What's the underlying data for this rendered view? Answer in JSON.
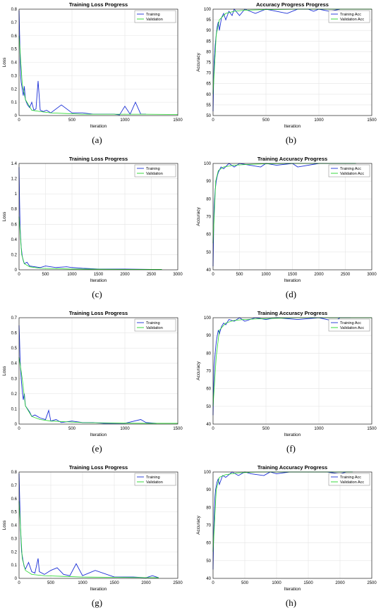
{
  "colors": {
    "training": "#1a2fd6",
    "validation": "#22d62a",
    "grid": "#e4e4e4",
    "axis": "#000000"
  },
  "chart_data": [
    {
      "type": "line",
      "caption": "(a)",
      "title": "Training Loss Progress",
      "xlabel": "Iteration",
      "ylabel": "Loss",
      "xlim": [
        0,
        1500
      ],
      "ylim": [
        0,
        0.8
      ],
      "xticks": [
        "0",
        "500",
        "1000",
        "1500"
      ],
      "yticks": [
        "0",
        "0.1",
        "0.2",
        "0.3",
        "0.4",
        "0.5",
        "0.6",
        "0.7",
        "0.8"
      ],
      "grid": true,
      "legend": "top-right",
      "series": [
        {
          "name": "Training",
          "x": [
            0,
            5,
            10,
            15,
            20,
            30,
            40,
            50,
            60,
            80,
            100,
            120,
            140,
            160,
            180,
            200,
            230,
            260,
            300,
            400,
            500,
            600,
            700,
            800,
            900,
            950,
            1000,
            1050,
            1100,
            1150,
            1200
          ],
          "y": [
            0.79,
            0.62,
            0.45,
            0.3,
            0.25,
            0.2,
            0.15,
            0.22,
            0.12,
            0.08,
            0.06,
            0.1,
            0.04,
            0.05,
            0.26,
            0.04,
            0.03,
            0.04,
            0.02,
            0.08,
            0.02,
            0.02,
            0.01,
            0.01,
            0.01,
            0.005,
            0.07,
            0.01,
            0.1,
            0.01,
            0.01
          ]
        },
        {
          "name": "Validation",
          "x": [
            0,
            30,
            60,
            120,
            200,
            300,
            450,
            600,
            800,
            1000,
            1200,
            1500
          ],
          "y": [
            0.6,
            0.24,
            0.12,
            0.04,
            0.03,
            0.02,
            0.015,
            0.01,
            0.01,
            0.01,
            0.01,
            0.008
          ]
        }
      ]
    },
    {
      "type": "line",
      "caption": "(b)",
      "title": "Accuracy Progress Progress",
      "xlabel": "Iteration",
      "ylabel": "Accuracy",
      "xlim": [
        0,
        1500
      ],
      "ylim": [
        50,
        100
      ],
      "xticks": [
        "0",
        "500",
        "1000",
        "1500"
      ],
      "yticks": [
        "50",
        "55",
        "60",
        "65",
        "70",
        "75",
        "80",
        "85",
        "90",
        "95",
        "100"
      ],
      "grid": true,
      "legend": "top-right",
      "series": [
        {
          "name": "Training Acc",
          "x": [
            0,
            5,
            10,
            20,
            30,
            40,
            50,
            60,
            80,
            100,
            120,
            150,
            180,
            200,
            250,
            300,
            350,
            400,
            500,
            600,
            700,
            800,
            900,
            950,
            1000,
            1100,
            1200
          ],
          "y": [
            52,
            65,
            75,
            83,
            88,
            92,
            94,
            90,
            96,
            98,
            95,
            99,
            97,
            100,
            97,
            100,
            99,
            98,
            100,
            99,
            98,
            100,
            100,
            99,
            100,
            99,
            100
          ]
        },
        {
          "name": "Validation Acc",
          "x": [
            0,
            30,
            60,
            120,
            200,
            300,
            500,
            800,
            1000,
            1200,
            1500
          ],
          "y": [
            60,
            88,
            95,
            98,
            99,
            99.5,
            99.8,
            100,
            100,
            100,
            100
          ]
        }
      ]
    },
    {
      "type": "line",
      "caption": "(c)",
      "title": "Training Loss Progress",
      "xlabel": "Iteration",
      "ylabel": "Loss",
      "xlim": [
        0,
        3000
      ],
      "ylim": [
        0,
        1.4
      ],
      "xticks": [
        "0",
        "500",
        "1000",
        "1500",
        "2000",
        "2500",
        "3000"
      ],
      "yticks": [
        "0",
        "0.2",
        "0.4",
        "0.6",
        "0.8",
        "1",
        "1.2",
        "1.4"
      ],
      "grid": true,
      "legend": "top-right",
      "series": [
        {
          "name": "Training",
          "x": [
            0,
            10,
            20,
            40,
            60,
            80,
            100,
            150,
            200,
            300,
            400,
            500,
            700,
            900,
            1000,
            1200,
            1500,
            2000,
            2500,
            2700
          ],
          "y": [
            1.35,
            0.9,
            0.55,
            0.3,
            0.18,
            0.12,
            0.08,
            0.1,
            0.05,
            0.04,
            0.03,
            0.05,
            0.03,
            0.04,
            0.03,
            0.02,
            0.01,
            0.01,
            0.005,
            0.005
          ]
        },
        {
          "name": "Validation",
          "x": [
            0,
            50,
            100,
            200,
            400,
            700,
            1000,
            1500,
            2000,
            2700
          ],
          "y": [
            0.7,
            0.2,
            0.08,
            0.04,
            0.02,
            0.015,
            0.01,
            0.008,
            0.006,
            0.005
          ]
        }
      ]
    },
    {
      "type": "line",
      "caption": "(d)",
      "title": "Training Accuracy Progress",
      "xlabel": "Iteration",
      "ylabel": "Accuracy",
      "xlim": [
        0,
        3000
      ],
      "ylim": [
        40,
        100
      ],
      "xticks": [
        "0",
        "500",
        "1000",
        "1500",
        "2000",
        "2500",
        "3000"
      ],
      "yticks": [
        "40",
        "50",
        "60",
        "70",
        "80",
        "90",
        "100"
      ],
      "grid": true,
      "legend": "top-right",
      "series": [
        {
          "name": "Training Acc",
          "x": [
            0,
            10,
            20,
            40,
            60,
            80,
            100,
            150,
            200,
            300,
            400,
            500,
            700,
            900,
            1000,
            1200,
            1500,
            1600,
            2000,
            2500,
            2700
          ],
          "y": [
            42,
            60,
            75,
            85,
            90,
            93,
            95,
            98,
            97,
            100,
            98,
            100,
            99,
            98,
            100,
            99,
            100,
            98,
            100,
            100,
            100
          ]
        },
        {
          "name": "Validation Acc",
          "x": [
            0,
            50,
            100,
            200,
            400,
            700,
            1000,
            1500,
            2000,
            2700
          ],
          "y": [
            55,
            90,
            96,
            98,
            99,
            99.5,
            99.8,
            100,
            100,
            100
          ]
        }
      ]
    },
    {
      "type": "line",
      "caption": "(e)",
      "title": "Training Loss Progress",
      "xlabel": "Iteration",
      "ylabel": "Loss",
      "xlim": [
        0,
        1500
      ],
      "ylim": [
        0,
        0.7
      ],
      "xticks": [
        "0",
        "500",
        "1000",
        "1500"
      ],
      "yticks": [
        "0",
        "0.1",
        "0.2",
        "0.3",
        "0.4",
        "0.5",
        "0.6",
        "0.7"
      ],
      "grid": true,
      "legend": "top-right",
      "series": [
        {
          "name": "Training",
          "x": [
            0,
            5,
            10,
            20,
            30,
            40,
            50,
            60,
            80,
            100,
            120,
            150,
            200,
            250,
            280,
            300,
            350,
            400,
            500,
            600,
            700,
            800,
            1000,
            1150,
            1200,
            1300
          ],
          "y": [
            0.65,
            0.55,
            0.42,
            0.3,
            0.22,
            0.16,
            0.2,
            0.12,
            0.1,
            0.08,
            0.05,
            0.06,
            0.04,
            0.03,
            0.09,
            0.02,
            0.03,
            0.01,
            0.02,
            0.01,
            0.01,
            0.005,
            0.005,
            0.03,
            0.01,
            0.005
          ]
        },
        {
          "name": "Validation",
          "x": [
            0,
            30,
            60,
            120,
            200,
            300,
            450,
            600,
            800,
            1000,
            1200,
            1500
          ],
          "y": [
            0.44,
            0.3,
            0.12,
            0.05,
            0.03,
            0.02,
            0.015,
            0.01,
            0.008,
            0.006,
            0.005,
            0.005
          ]
        }
      ]
    },
    {
      "type": "line",
      "caption": "(f)",
      "title": "Training Accuracy Progress",
      "xlabel": "Iteration",
      "ylabel": "Accuracy",
      "xlim": [
        0,
        1500
      ],
      "ylim": [
        40,
        100
      ],
      "xticks": [
        "0",
        "500",
        "1000",
        "1500"
      ],
      "yticks": [
        "40",
        "50",
        "60",
        "70",
        "80",
        "90",
        "100"
      ],
      "grid": true,
      "legend": "top-right",
      "series": [
        {
          "name": "Training Acc",
          "x": [
            0,
            5,
            10,
            20,
            30,
            40,
            50,
            60,
            80,
            100,
            120,
            150,
            200,
            250,
            300,
            400,
            500,
            600,
            800,
            1000,
            1150,
            1200,
            1300
          ],
          "y": [
            45,
            60,
            72,
            80,
            86,
            90,
            93,
            91,
            95,
            97,
            96,
            99,
            98,
            100,
            98,
            100,
            99,
            100,
            99,
            100,
            98,
            100,
            100
          ]
        },
        {
          "name": "Validation Acc",
          "x": [
            0,
            30,
            60,
            120,
            200,
            300,
            500,
            800,
            1000,
            1200,
            1500
          ],
          "y": [
            50,
            78,
            93,
            97,
            98.5,
            99,
            99.5,
            100,
            100,
            100,
            100
          ]
        }
      ]
    },
    {
      "type": "line",
      "caption": "(g)",
      "title": "Training Loss Progress",
      "xlabel": "Iteration",
      "ylabel": "Loss",
      "xlim": [
        0,
        2500
      ],
      "ylim": [
        0,
        0.8
      ],
      "xticks": [
        "0",
        "500",
        "1000",
        "1500",
        "2000",
        "2500"
      ],
      "yticks": [
        "0",
        "0.1",
        "0.2",
        "0.3",
        "0.4",
        "0.5",
        "0.6",
        "0.7",
        "0.8"
      ],
      "grid": true,
      "legend": "top-right",
      "series": [
        {
          "name": "Training",
          "x": [
            0,
            10,
            20,
            30,
            40,
            60,
            80,
            100,
            150,
            200,
            250,
            300,
            320,
            400,
            500,
            600,
            700,
            800,
            900,
            1000,
            1200,
            1500,
            1800,
            2000,
            2100,
            2200
          ],
          "y": [
            0.79,
            0.6,
            0.42,
            0.3,
            0.2,
            0.14,
            0.09,
            0.07,
            0.12,
            0.05,
            0.04,
            0.15,
            0.05,
            0.03,
            0.06,
            0.08,
            0.03,
            0.02,
            0.11,
            0.02,
            0.06,
            0.01,
            0.01,
            0.005,
            0.02,
            0.005
          ]
        },
        {
          "name": "Validation",
          "x": [
            0,
            50,
            100,
            200,
            400,
            700,
            1000,
            1500,
            2000,
            2200
          ],
          "y": [
            0.58,
            0.15,
            0.06,
            0.03,
            0.02,
            0.015,
            0.01,
            0.008,
            0.006,
            0.005
          ]
        }
      ]
    },
    {
      "type": "line",
      "caption": "(h)",
      "title": "Training Accuracy Progress",
      "xlabel": "Iteration",
      "ylabel": "Accuracy",
      "xlim": [
        0,
        2500
      ],
      "ylim": [
        40,
        100
      ],
      "xticks": [
        "0",
        "500",
        "1000",
        "1500",
        "2000",
        "2500"
      ],
      "yticks": [
        "40",
        "50",
        "60",
        "70",
        "80",
        "90",
        "100"
      ],
      "grid": true,
      "legend": "top-right",
      "series": [
        {
          "name": "Training Acc",
          "x": [
            0,
            10,
            20,
            30,
            40,
            60,
            80,
            100,
            150,
            200,
            300,
            400,
            500,
            600,
            800,
            900,
            1000,
            1200,
            1500,
            1800,
            2000,
            2100,
            2200
          ],
          "y": [
            45,
            65,
            78,
            86,
            90,
            94,
            96,
            93,
            98,
            97,
            100,
            98,
            100,
            99,
            98,
            100,
            99,
            100,
            100,
            100,
            99,
            100,
            100
          ]
        },
        {
          "name": "Validation Acc",
          "x": [
            0,
            50,
            100,
            200,
            400,
            700,
            1000,
            1500,
            2000,
            2200
          ],
          "y": [
            55,
            90,
            97,
            98.5,
            99.5,
            100,
            100,
            100,
            100,
            100
          ]
        }
      ]
    }
  ]
}
